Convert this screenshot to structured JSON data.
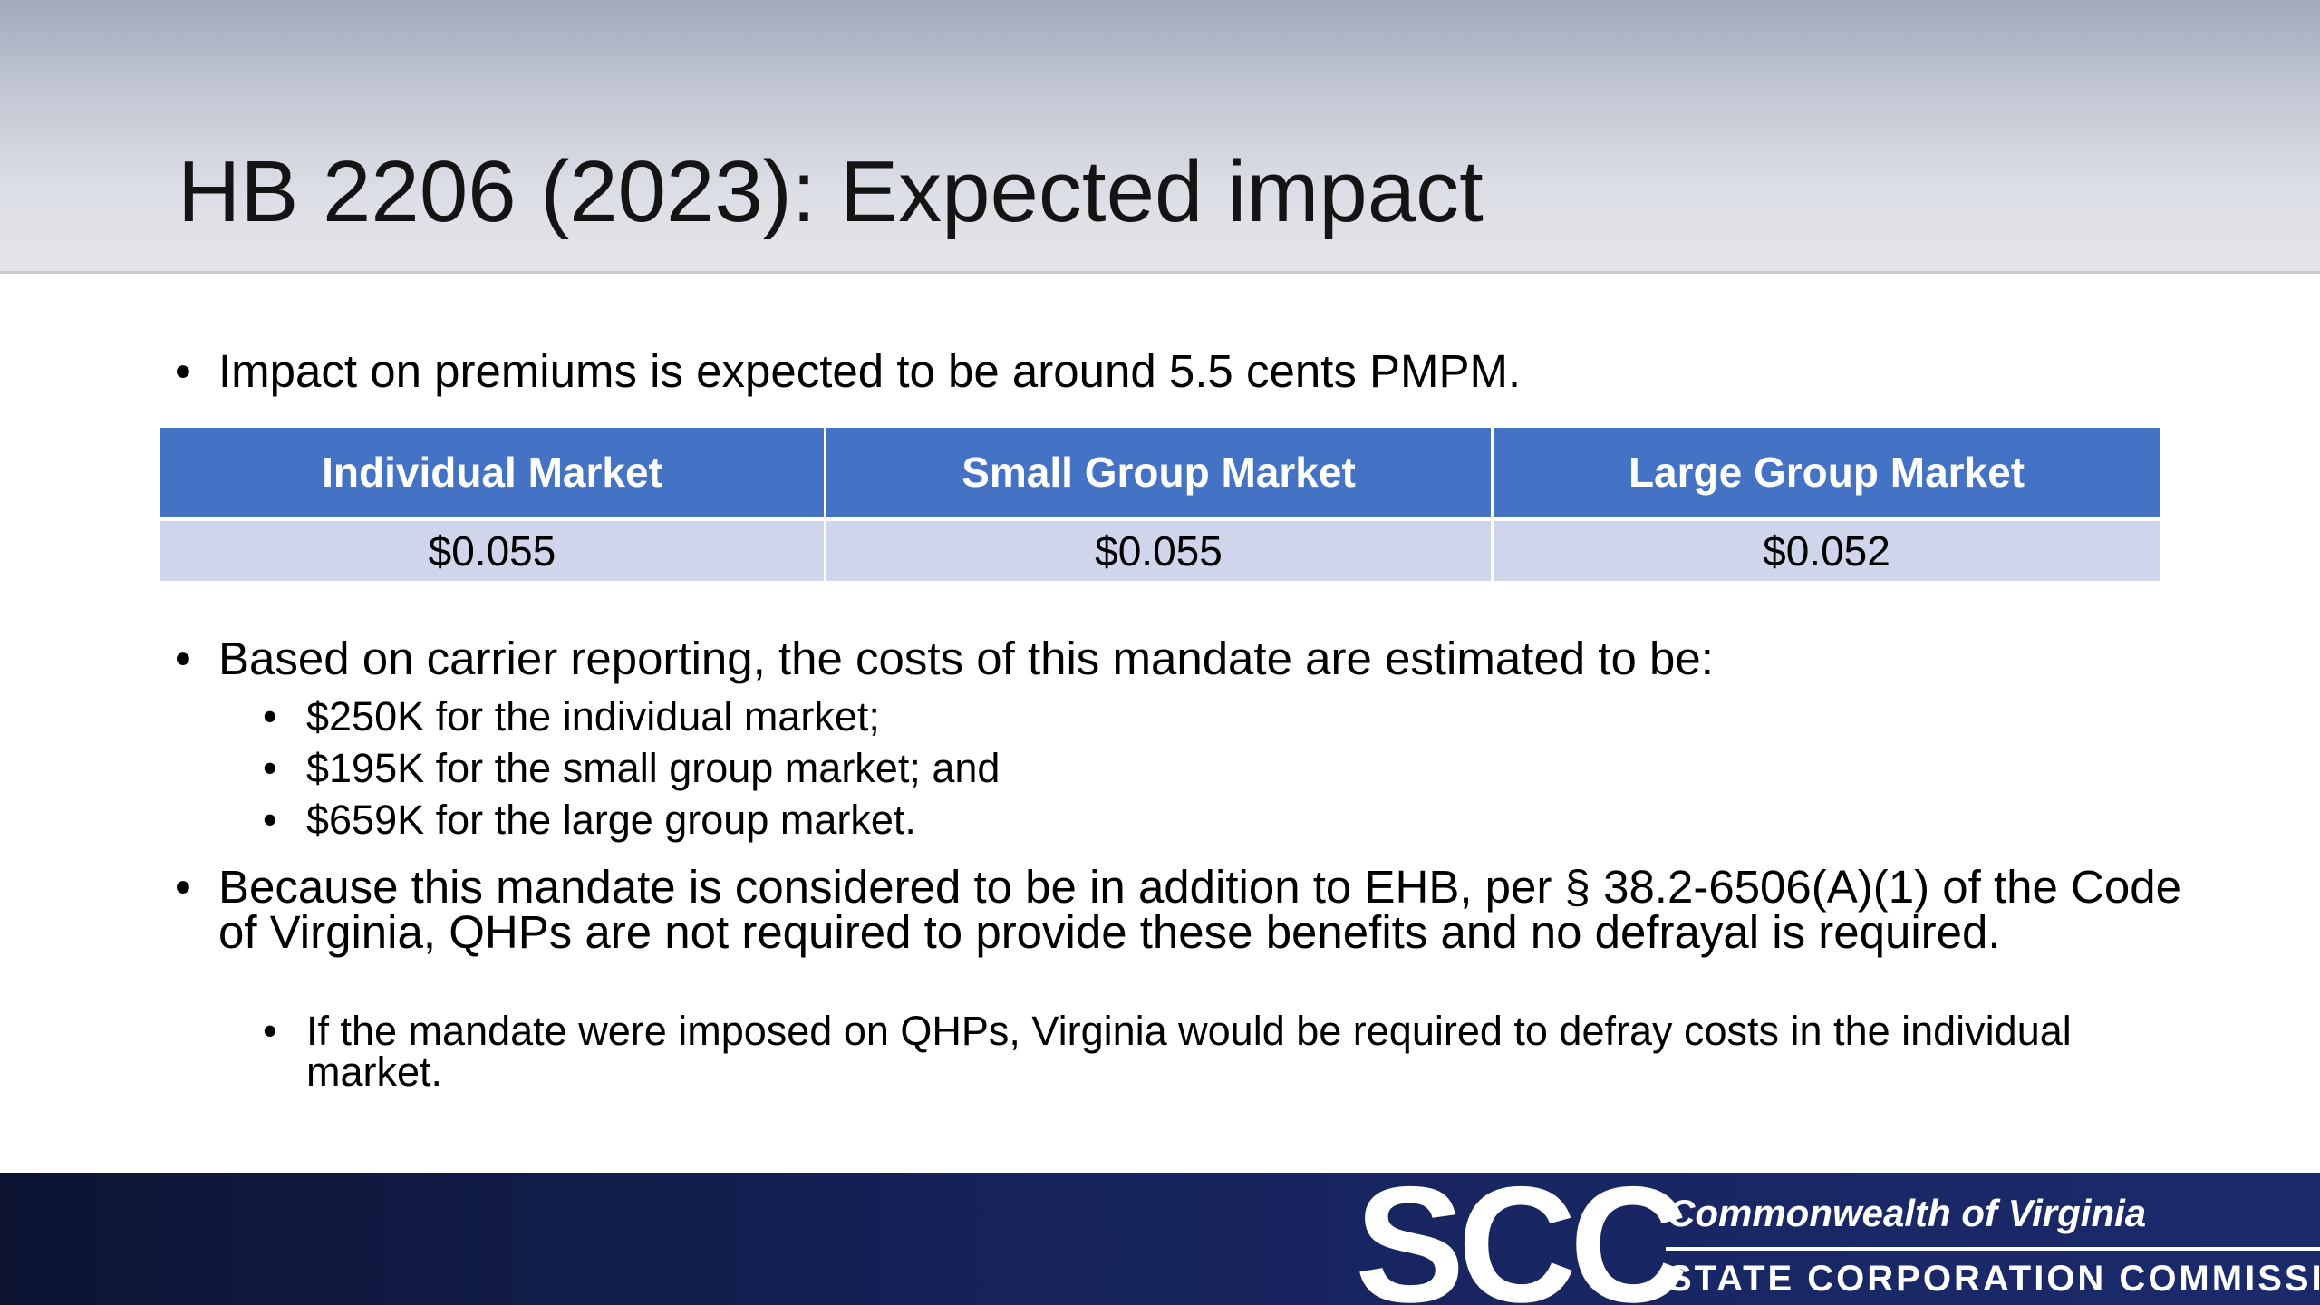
{
  "slide": {
    "title": "HB 2206 (2023): Expected impact"
  },
  "bullets": {
    "bullet_char": "•",
    "premium_impact": "Impact on premiums is expected to be around 5.5 cents PMPM.",
    "costs_intro": "Based on carrier reporting, the costs of this mandate are estimated to be:",
    "costs_items": [
      "$250K for the individual market;",
      "$195K for the small group market; and",
      "$659K for the large group market."
    ],
    "ehb_note": "Because this mandate is considered to be in addition to EHB, per § 38.2-6506(A)(1) of the Code of Virginia, QHPs are not required to provide these benefits and no defrayal is required.",
    "ehb_subnote": "If the mandate were imposed on QHPs, Virginia would be required to defray costs in the individual market."
  },
  "table": {
    "headers": [
      "Individual Market",
      "Small Group Market",
      "Large Group Market"
    ],
    "values": [
      "$0.055",
      "$0.055",
      "$0.052"
    ],
    "colors": {
      "header_bg": "#4472c4",
      "row_bg": "#cfd5ea"
    }
  },
  "footer": {
    "logo_text": "SCC",
    "agency_line1": "Commonwealth of Virginia",
    "agency_line2": "STATE CORPORATION COMMISSION",
    "colors": {
      "band_dark": "#0c1432",
      "band_light": "#1b2a6b"
    }
  }
}
